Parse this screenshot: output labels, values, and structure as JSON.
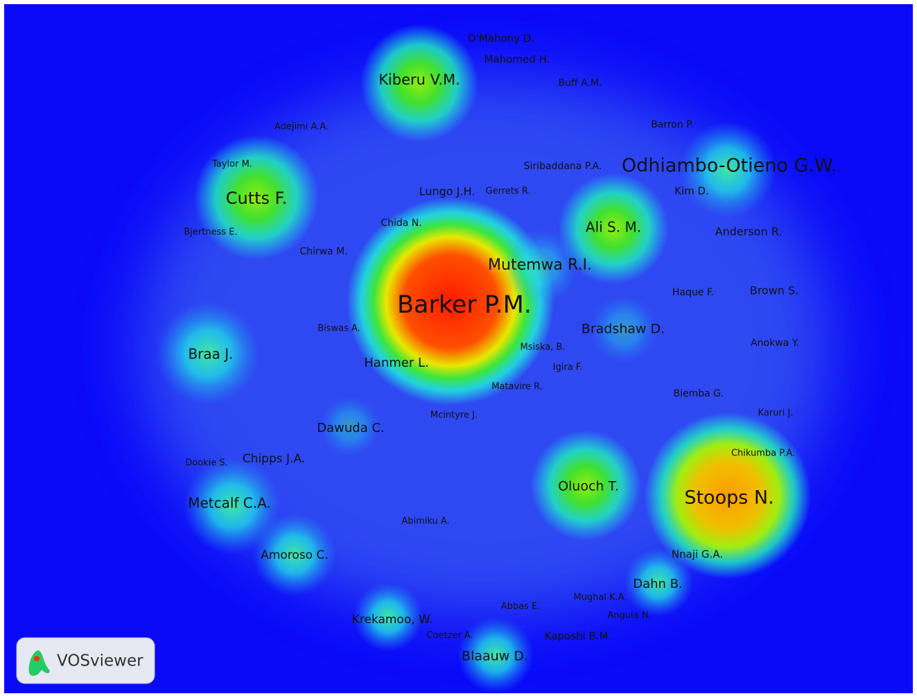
{
  "labels": [
    "O'Mahony D.",
    "Mahomed H.",
    "Kiberu V.M.",
    "Buff A.M.",
    "Adejimi A.A.",
    "Barron P.",
    "Taylor M.",
    "Siribaddana P.A.",
    "Odhiambo-Otieno G.W.",
    "Cutts F.",
    "Lungo J.H.",
    "Gerrets R.",
    "Kim D.",
    "Chida N.",
    "Ali S. M.",
    "Anderson R.",
    "Bjertness E.",
    "Chirwa M.",
    "Mutemwa R.I.",
    "Barker P.M.",
    "Haque F.",
    "Brown S.",
    "Biswas A.",
    "Bradshaw D.",
    "Anokwa Y.",
    "Braa J.",
    "Msiska, B.",
    "Hanmer L.",
    "Igira F.",
    "Matavire R.",
    "Biemba G.",
    "Mcintyre J.",
    "Karuri J.",
    "Dawuda C.",
    "Chikumba P.A.",
    "Dookie S.",
    "Chipps J.A.",
    "Oluoch T.",
    "Stoops N.",
    "Metcalf C.A.",
    "Abimiku A.",
    "Amoroso C.",
    "Nnaji G.A.",
    "Dahn B.",
    "Mughal K.A.",
    "Abbas E.",
    "Angula N.",
    "Krekamoo, W.",
    "Coetzer A.",
    "Kaposhi B.M.",
    "Blaauw D."
  ],
  "logo": "VOSviewer"
}
